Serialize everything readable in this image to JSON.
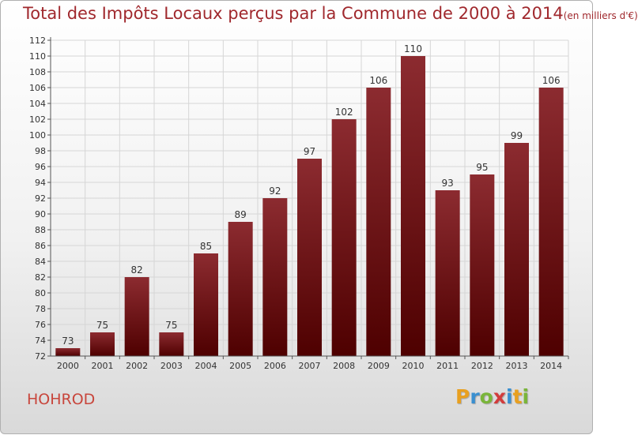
{
  "title": {
    "main": "Total des Impôts Locaux perçus par la Commune de 2000 à 2014",
    "unit": "(en milliers d'€)"
  },
  "commune": "HOHROD",
  "logo": {
    "text": "Proxiti",
    "letters": [
      {
        "char": "P",
        "color": "#e8a020"
      },
      {
        "char": "r",
        "color": "#3a8fd0"
      },
      {
        "char": "o",
        "color": "#7ab53a"
      },
      {
        "char": "x",
        "color": "#d23c3c"
      },
      {
        "char": "i",
        "color": "#3a8fd0"
      },
      {
        "char": "t",
        "color": "#e8a020"
      },
      {
        "char": "i",
        "color": "#7ab53a"
      }
    ]
  },
  "colors": {
    "bar_top": "#8c2b30",
    "bar_bottom": "#4e0000",
    "title": "#a0282d",
    "commune": "#c8463c",
    "grid": "#d6d6d6"
  },
  "chart_data": {
    "type": "bar",
    "title": "Total des Impôts Locaux perçus par la Commune de 2000 à 2014 (en milliers d'€)",
    "xlabel": "",
    "ylabel": "",
    "categories": [
      "2000",
      "2001",
      "2002",
      "2003",
      "2004",
      "2005",
      "2006",
      "2007",
      "2008",
      "2009",
      "2010",
      "2011",
      "2012",
      "2013",
      "2014"
    ],
    "values": [
      73,
      75,
      82,
      75,
      85,
      89,
      92,
      97,
      102,
      106,
      110,
      93,
      95,
      99,
      106
    ],
    "ylim": [
      72,
      112
    ],
    "yticks": [
      72,
      74,
      76,
      78,
      80,
      82,
      84,
      86,
      88,
      90,
      92,
      94,
      96,
      98,
      100,
      102,
      104,
      106,
      108,
      110,
      112
    ],
    "grid": true
  }
}
